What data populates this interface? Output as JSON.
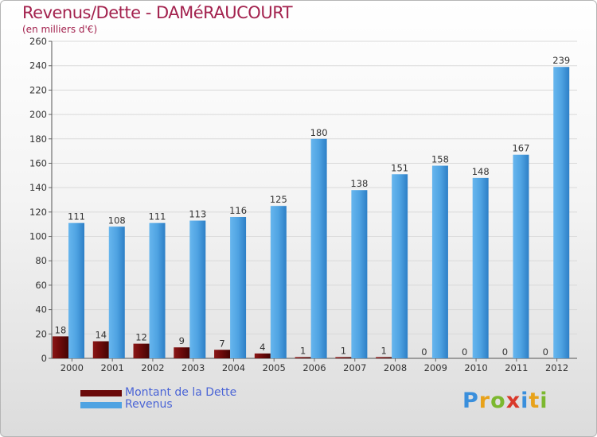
{
  "header": {
    "title": "Revenus/Dette - DAMéRAUCOURT",
    "subtitle": "(en milliers d'€)"
  },
  "legend": {
    "items": [
      {
        "label": "Montant de la Dette",
        "color": "#6b0a0a"
      },
      {
        "label": "Revenus",
        "color": "#4fa3e2"
      }
    ]
  },
  "logo": {
    "letters": [
      {
        "ch": "P",
        "color": "#3a8fdc"
      },
      {
        "ch": "r",
        "color": "#e8a21a"
      },
      {
        "ch": "o",
        "color": "#7cb82f"
      },
      {
        "ch": "x",
        "color": "#d9382a"
      },
      {
        "ch": "i",
        "color": "#3a8fdc"
      },
      {
        "ch": "t",
        "color": "#e8a21a"
      },
      {
        "ch": "i",
        "color": "#7cb82f"
      }
    ]
  },
  "chart_data": {
    "type": "bar",
    "title": "Revenus/Dette - DAMéRAUCOURT",
    "subtitle": "(en milliers d'€)",
    "categories": [
      "2000",
      "2001",
      "2002",
      "2003",
      "2004",
      "2005",
      "2006",
      "2007",
      "2008",
      "2009",
      "2010",
      "2011",
      "2012"
    ],
    "series": [
      {
        "name": "Montant de la Dette",
        "color": "#6b0a0a",
        "values": [
          18,
          14,
          12,
          9,
          7,
          4,
          1,
          1,
          1,
          0,
          0,
          0,
          0
        ]
      },
      {
        "name": "Revenus",
        "color": "#4fa3e2",
        "values": [
          111,
          108,
          111,
          113,
          116,
          125,
          180,
          138,
          151,
          158,
          148,
          167,
          239
        ]
      }
    ],
    "yticks": [
      0,
      20,
      40,
      60,
      80,
      100,
      120,
      140,
      160,
      180,
      200,
      220,
      240,
      260
    ],
    "ylim": [
      0,
      260
    ],
    "grid": true,
    "legend_position": "bottom-left"
  }
}
